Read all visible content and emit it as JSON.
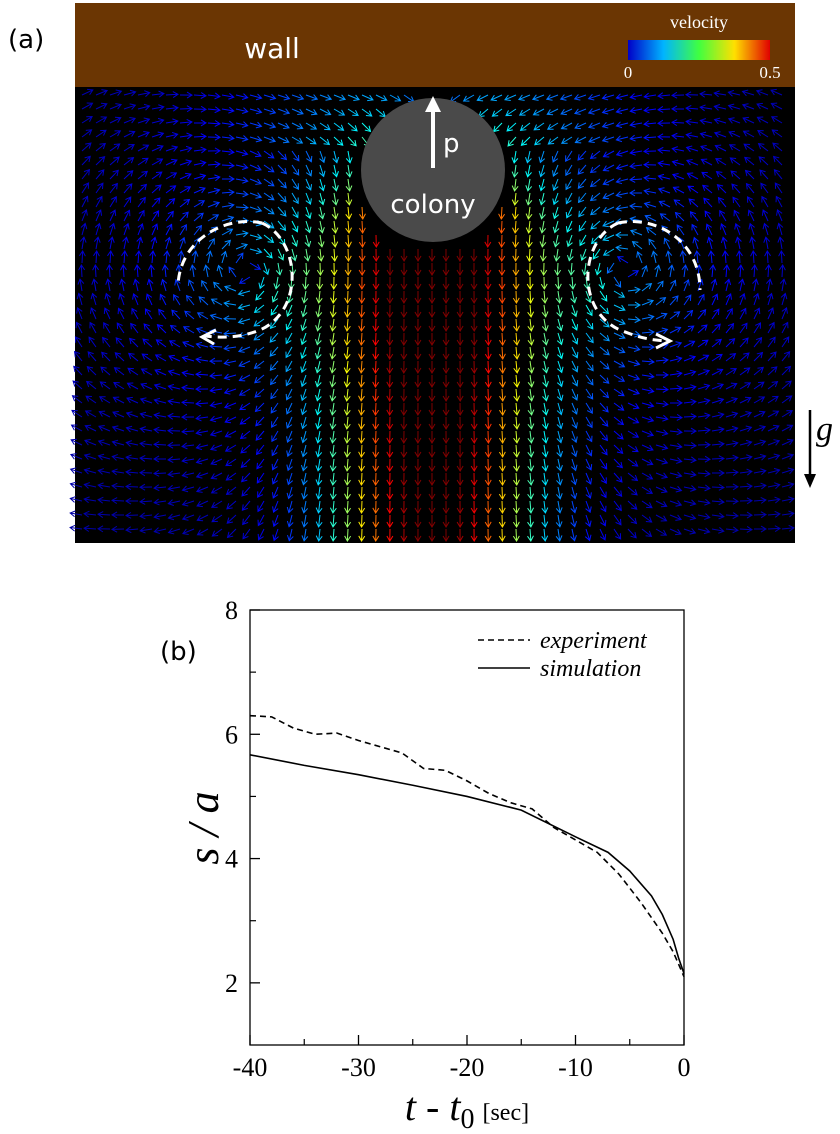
{
  "panel_a": {
    "label": "(a)",
    "wall": "wall",
    "colony": "colony",
    "polarity": "p",
    "gravity": "g",
    "colorbar": {
      "title": "velocity",
      "range": [
        0,
        0.5
      ],
      "ticks": [
        0,
        0.5
      ]
    }
  },
  "chart_data": {
    "type": "line",
    "panel_label": "(b)",
    "ylabel": "s / a",
    "xlabel": {
      "main": "t - t",
      "subscript": "0",
      "unit": "[sec]"
    },
    "xlim": [
      -40,
      0
    ],
    "ylim": [
      1,
      8
    ],
    "xticks": [
      -40,
      -30,
      -20,
      -10,
      0
    ],
    "yticks": [
      2,
      4,
      6,
      8
    ],
    "xminor": [
      -35,
      -25,
      -15,
      -5
    ],
    "yminor": [
      3,
      5,
      7
    ],
    "legend": "upper right",
    "series": [
      {
        "name": "experiment",
        "color": "#000000",
        "dash": true,
        "x": [
          -40,
          -38,
          -36,
          -34,
          -32,
          -30,
          -28,
          -26,
          -24,
          -22,
          -20,
          -18,
          -16,
          -14,
          -12,
          -10,
          -8,
          -6,
          -4,
          -2,
          -1,
          0
        ],
        "values": [
          6.3,
          6.28,
          6.1,
          6.0,
          6.02,
          5.9,
          5.8,
          5.7,
          5.45,
          5.42,
          5.25,
          5.05,
          4.9,
          4.8,
          4.5,
          4.3,
          4.1,
          3.75,
          3.3,
          2.8,
          2.5,
          2.1
        ]
      },
      {
        "name": "simulation",
        "color": "#000000",
        "dash": false,
        "x": [
          -40,
          -35,
          -30,
          -25,
          -20,
          -15,
          -10,
          -7,
          -5,
          -3,
          -2,
          -1,
          -0.5,
          0
        ],
        "values": [
          5.67,
          5.5,
          5.35,
          5.18,
          5.0,
          4.78,
          4.35,
          4.1,
          3.8,
          3.4,
          3.1,
          2.7,
          2.4,
          2.15
        ]
      }
    ]
  }
}
